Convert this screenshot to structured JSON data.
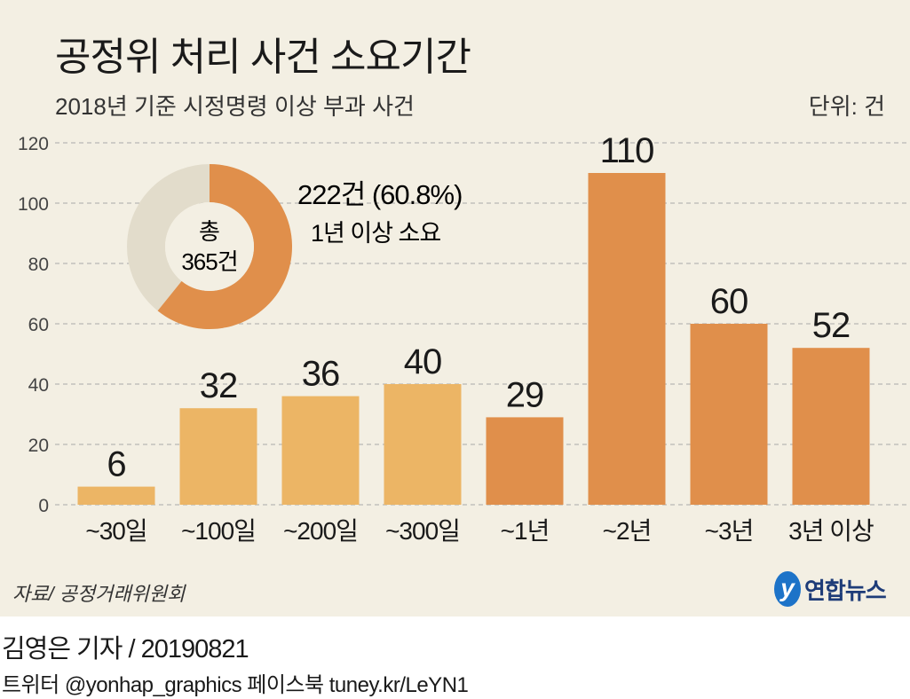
{
  "header": {
    "title": "공정위 처리 사건 소요기간",
    "subtitle": "2018년 기준 시정명령 이상 부과 사건",
    "unit": "단위: 건"
  },
  "chart_data": {
    "type": "bar",
    "title": "공정위 처리 사건 소요기간",
    "subtitle": "2018년 기준 시정명령 이상 부과 사건",
    "unit": "단위: 건",
    "categories": [
      "~30일",
      "~100일",
      "~200일",
      "~300일",
      "~1년",
      "~2년",
      "~3년",
      "3년 이상"
    ],
    "values": [
      6,
      32,
      36,
      40,
      29,
      110,
      60,
      52
    ],
    "ylim": [
      0,
      120
    ],
    "yticks": [
      0,
      20,
      40,
      60,
      80,
      100,
      120
    ],
    "grid": true,
    "colors": {
      "under_1y": "#ecb565",
      "over_1y": "#e08f4b",
      "donut_rest": "#e2dccb"
    },
    "bar_color_groups": [
      "under_1y",
      "under_1y",
      "under_1y",
      "under_1y",
      "over_1y",
      "over_1y",
      "over_1y",
      "over_1y"
    ],
    "inset_donut": {
      "type": "pie",
      "total": 365,
      "center_label_1": "총",
      "center_label_2": "365건",
      "highlight_value": 222,
      "highlight_percent": 60.8,
      "annotation_1": "222건 (60.8%)",
      "annotation_2": "1년 이상 소요"
    }
  },
  "footer": {
    "source": "자료/ 공정거래위원회",
    "logo_text": "연합뉴스",
    "logo_mark": "y",
    "byline": "김영은 기자 / 20190821",
    "sns": "트위터 @yonhap_graphics  페이스북 tuney.kr/LeYN1"
  }
}
